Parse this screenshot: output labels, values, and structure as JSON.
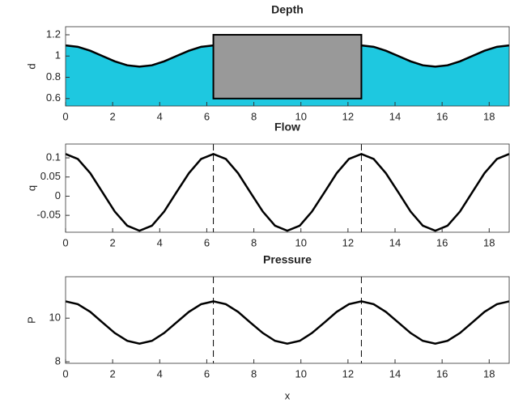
{
  "chart_data": [
    {
      "type": "area",
      "title": "Depth",
      "ylabel": "d",
      "x": [
        0,
        0.52,
        1.05,
        1.57,
        2.09,
        2.62,
        3.14,
        3.67,
        4.19,
        4.71,
        5.24,
        5.76,
        6.28,
        6.81,
        7.33,
        7.85,
        8.38,
        8.9,
        9.42,
        9.95,
        10.47,
        11.0,
        11.52,
        12.04,
        12.57,
        13.09,
        13.61,
        14.14,
        14.66,
        15.18,
        15.71,
        16.23,
        16.76,
        17.28,
        17.8,
        18.33,
        18.85
      ],
      "series": [
        {
          "color": "#000000",
          "fill": "#1ec8e0",
          "values": [
            1.1,
            1.087,
            1.05,
            1.0,
            0.95,
            0.913,
            0.9,
            0.913,
            0.95,
            1.0,
            1.05,
            1.087,
            1.1,
            1.087,
            1.05,
            1.0,
            0.95,
            0.913,
            0.9,
            0.913,
            0.95,
            1.0,
            1.05,
            1.087,
            1.1,
            1.087,
            1.05,
            1.0,
            0.95,
            0.913,
            0.9,
            0.913,
            0.95,
            1.0,
            1.05,
            1.087,
            1.1
          ]
        }
      ],
      "rect": {
        "x": [
          6.28,
          12.57
        ],
        "y": [
          0.6,
          1.2
        ],
        "color": "#999999"
      },
      "xlim": [
        0,
        18.85
      ],
      "xticks": [
        0,
        2,
        4,
        6,
        8,
        10,
        12,
        14,
        16,
        18
      ],
      "ylim": [
        0.53,
        1.276
      ],
      "yticks": [
        0.6,
        0.8,
        1,
        1.2
      ]
    },
    {
      "type": "line",
      "title": "Flow",
      "ylabel": "q",
      "x": [
        0,
        0.52,
        1.05,
        1.57,
        2.09,
        2.62,
        3.14,
        3.67,
        4.19,
        4.71,
        5.24,
        5.76,
        6.28,
        6.81,
        7.33,
        7.85,
        8.38,
        8.9,
        9.42,
        9.95,
        10.47,
        11.0,
        11.52,
        12.04,
        12.57,
        13.09,
        13.61,
        14.14,
        14.66,
        15.18,
        15.71,
        16.23,
        16.76,
        17.28,
        17.8,
        18.33,
        18.85
      ],
      "series": [
        {
          "color": "#000000",
          "values": [
            0.11,
            0.097,
            0.06,
            0.01,
            -0.04,
            -0.077,
            -0.09,
            -0.077,
            -0.04,
            0.01,
            0.06,
            0.097,
            0.11,
            0.097,
            0.06,
            0.01,
            -0.04,
            -0.077,
            -0.09,
            -0.077,
            -0.04,
            0.01,
            0.06,
            0.097,
            0.11,
            0.097,
            0.06,
            0.01,
            -0.04,
            -0.077,
            -0.09,
            -0.077,
            -0.04,
            0.01,
            0.06,
            0.097,
            0.11
          ]
        }
      ],
      "vlines": [
        6.28,
        12.57
      ],
      "xlim": [
        0,
        18.85
      ],
      "xticks": [
        0,
        2,
        4,
        6,
        8,
        10,
        12,
        14,
        16,
        18
      ],
      "ylim": [
        -0.094,
        0.136
      ],
      "yticks": [
        -0.05,
        0,
        0.05,
        0.1
      ]
    },
    {
      "type": "line",
      "title": "Pressure",
      "ylabel": "P",
      "xlabel": "x",
      "x": [
        0,
        0.52,
        1.05,
        1.57,
        2.09,
        2.62,
        3.14,
        3.67,
        4.19,
        4.71,
        5.24,
        5.76,
        6.28,
        6.81,
        7.33,
        7.85,
        8.38,
        8.9,
        9.42,
        9.95,
        10.47,
        11.0,
        11.52,
        12.04,
        12.57,
        13.09,
        13.61,
        14.14,
        14.66,
        15.18,
        15.71,
        16.23,
        16.76,
        17.28,
        17.8,
        18.33,
        18.85
      ],
      "series": [
        {
          "color": "#000000",
          "values": [
            10.77,
            10.64,
            10.29,
            9.8,
            9.32,
            8.96,
            8.83,
            8.96,
            9.32,
            9.8,
            10.29,
            10.64,
            10.77,
            10.64,
            10.29,
            9.8,
            9.32,
            8.96,
            8.83,
            8.96,
            9.32,
            9.8,
            10.29,
            10.64,
            10.77,
            10.64,
            10.29,
            9.8,
            9.32,
            8.96,
            8.83,
            8.96,
            9.32,
            9.8,
            10.29,
            10.64,
            10.77
          ]
        }
      ],
      "vlines": [
        6.28,
        12.57
      ],
      "xlim": [
        0,
        18.85
      ],
      "xticks": [
        0,
        2,
        4,
        6,
        8,
        10,
        12,
        14,
        16,
        18
      ],
      "ylim": [
        7.93,
        11.9
      ],
      "yticks": [
        8,
        10
      ]
    }
  ]
}
